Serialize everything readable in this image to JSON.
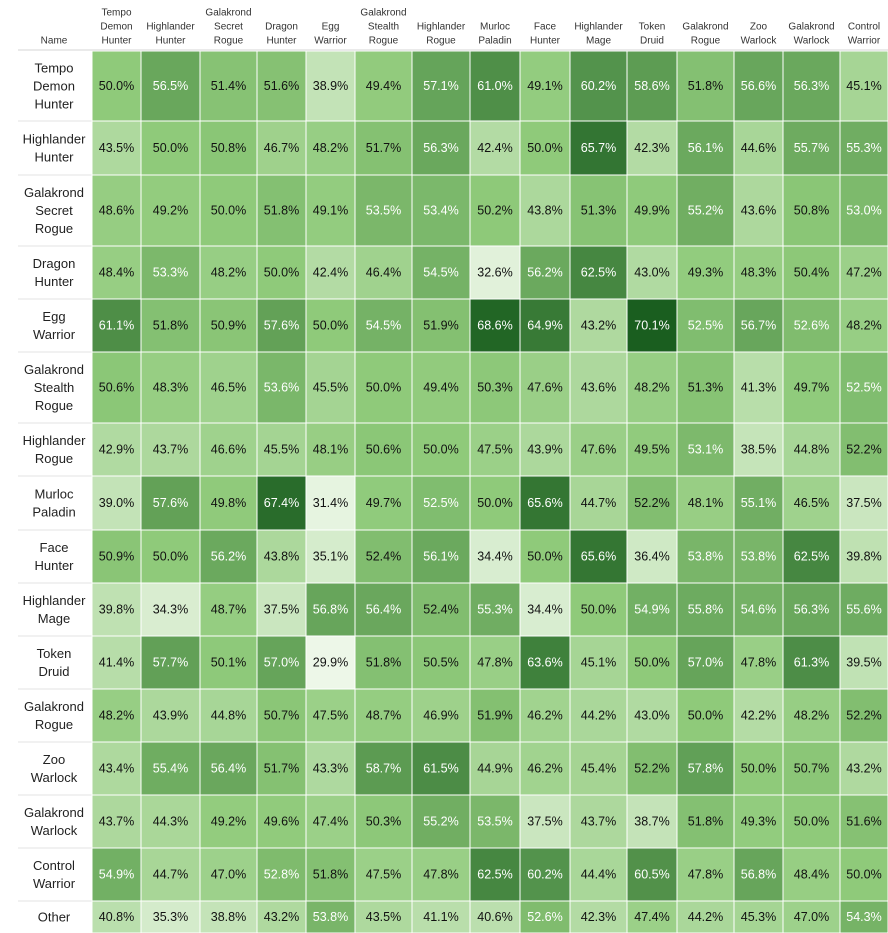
{
  "chart_data": {
    "type": "heatmap",
    "corner_label": "Name",
    "columns": [
      [
        "Tempo",
        "Demon",
        "Hunter"
      ],
      [
        "Highlander",
        "Hunter"
      ],
      [
        "Galakrond",
        "Secret",
        "Rogue"
      ],
      [
        "Dragon",
        "Hunter"
      ],
      [
        "Egg",
        "Warrior"
      ],
      [
        "Galakrond",
        "Stealth",
        "Rogue"
      ],
      [
        "Highlander",
        "Rogue"
      ],
      [
        "Murloc",
        "Paladin"
      ],
      [
        "Face",
        "Hunter"
      ],
      [
        "Highlander",
        "Mage"
      ],
      [
        "Token",
        "Druid"
      ],
      [
        "Galakrond",
        "Rogue"
      ],
      [
        "Zoo",
        "Warlock"
      ],
      [
        "Galakrond",
        "Warlock"
      ],
      [
        "Control",
        "Warrior"
      ]
    ],
    "rows": [
      [
        "Tempo",
        "Demon",
        "Hunter"
      ],
      [
        "Highlander",
        "Hunter"
      ],
      [
        "Galakrond",
        "Secret",
        "Rogue"
      ],
      [
        "Dragon",
        "Hunter"
      ],
      [
        "Egg",
        "Warrior"
      ],
      [
        "Galakrond",
        "Stealth",
        "Rogue"
      ],
      [
        "Highlander",
        "Rogue"
      ],
      [
        "Murloc",
        "Paladin"
      ],
      [
        "Face",
        "Hunter"
      ],
      [
        "Highlander",
        "Mage"
      ],
      [
        "Token",
        "Druid"
      ],
      [
        "Galakrond",
        "Rogue"
      ],
      [
        "Zoo",
        "Warlock"
      ],
      [
        "Galakrond",
        "Warlock"
      ],
      [
        "Control",
        "Warrior"
      ],
      [
        "Other"
      ]
    ],
    "unit": "%",
    "values": [
      [
        50.0,
        56.5,
        51.4,
        51.6,
        38.9,
        49.4,
        57.1,
        61.0,
        49.1,
        60.2,
        58.6,
        51.8,
        56.6,
        56.3,
        45.1
      ],
      [
        43.5,
        50.0,
        50.8,
        46.7,
        48.2,
        51.7,
        56.3,
        42.4,
        50.0,
        65.7,
        42.3,
        56.1,
        44.6,
        55.7,
        55.3
      ],
      [
        48.6,
        49.2,
        50.0,
        51.8,
        49.1,
        53.5,
        53.4,
        50.2,
        43.8,
        51.3,
        49.9,
        55.2,
        43.6,
        50.8,
        53.0
      ],
      [
        48.4,
        53.3,
        48.2,
        50.0,
        42.4,
        46.4,
        54.5,
        32.6,
        56.2,
        62.5,
        43.0,
        49.3,
        48.3,
        50.4,
        47.2
      ],
      [
        61.1,
        51.8,
        50.9,
        57.6,
        50.0,
        54.5,
        51.9,
        68.6,
        64.9,
        43.2,
        70.1,
        52.5,
        56.7,
        52.6,
        48.2
      ],
      [
        50.6,
        48.3,
        46.5,
        53.6,
        45.5,
        50.0,
        49.4,
        50.3,
        47.6,
        43.6,
        48.2,
        51.3,
        41.3,
        49.7,
        52.5
      ],
      [
        42.9,
        43.7,
        46.6,
        45.5,
        48.1,
        50.6,
        50.0,
        47.5,
        43.9,
        47.6,
        49.5,
        53.1,
        38.5,
        44.8,
        52.2
      ],
      [
        39.0,
        57.6,
        49.8,
        67.4,
        31.4,
        49.7,
        52.5,
        50.0,
        65.6,
        44.7,
        52.2,
        48.1,
        55.1,
        46.5,
        37.5
      ],
      [
        50.9,
        50.0,
        56.2,
        43.8,
        35.1,
        52.4,
        56.1,
        34.4,
        50.0,
        65.6,
        36.4,
        53.8,
        53.8,
        62.5,
        39.8
      ],
      [
        39.8,
        34.3,
        48.7,
        37.5,
        56.8,
        56.4,
        52.4,
        55.3,
        34.4,
        50.0,
        54.9,
        55.8,
        54.6,
        56.3,
        55.6
      ],
      [
        41.4,
        57.7,
        50.1,
        57.0,
        29.9,
        51.8,
        50.5,
        47.8,
        63.6,
        45.1,
        50.0,
        57.0,
        47.8,
        61.3,
        39.5
      ],
      [
        48.2,
        43.9,
        44.8,
        50.7,
        47.5,
        48.7,
        46.9,
        51.9,
        46.2,
        44.2,
        43.0,
        50.0,
        42.2,
        48.2,
        52.2
      ],
      [
        43.4,
        55.4,
        56.4,
        51.7,
        43.3,
        58.7,
        61.5,
        44.9,
        46.2,
        45.4,
        52.2,
        57.8,
        50.0,
        50.7,
        43.2
      ],
      [
        43.7,
        44.3,
        49.2,
        49.6,
        47.4,
        50.3,
        55.2,
        53.5,
        37.5,
        43.7,
        38.7,
        51.8,
        49.3,
        50.0,
        51.6
      ],
      [
        54.9,
        44.7,
        47.0,
        52.8,
        51.8,
        47.5,
        47.8,
        62.5,
        60.2,
        44.4,
        60.5,
        47.8,
        56.8,
        48.4,
        50.0
      ],
      [
        40.8,
        35.3,
        38.8,
        43.2,
        53.8,
        43.5,
        41.1,
        40.6,
        52.6,
        42.3,
        47.4,
        44.2,
        45.3,
        47.0,
        54.3
      ]
    ],
    "colors": {
      "low": "#edf7e8",
      "mid": "#8fca7a",
      "high": "#1a5e1f",
      "text_dark": "#111111",
      "text_light": "#ffffff",
      "cell_border": "#ffffff"
    }
  }
}
